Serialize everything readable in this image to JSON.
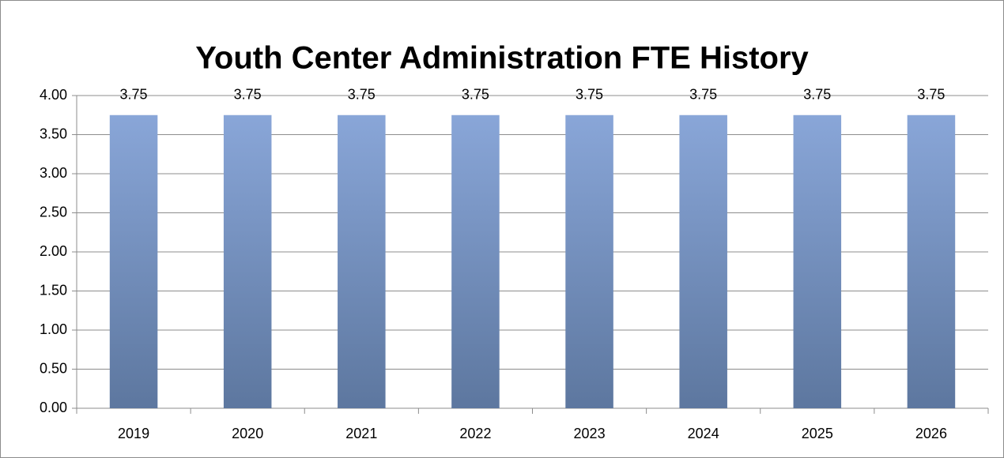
{
  "chart_data": {
    "type": "bar",
    "title": "Youth Center Administration FTE History",
    "categories": [
      "2019",
      "2020",
      "2021",
      "2022",
      "2023",
      "2024",
      "2025",
      "2026"
    ],
    "values": [
      3.75,
      3.75,
      3.75,
      3.75,
      3.75,
      3.75,
      3.75,
      3.75
    ],
    "color": "#7b96c4",
    "ylim": [
      0,
      4
    ],
    "yticks": [
      {
        "value": 0,
        "label": "0.00"
      },
      {
        "value": 0.5,
        "label": "0.50"
      },
      {
        "value": 1,
        "label": "1.00"
      },
      {
        "value": 1.5,
        "label": "1.50"
      },
      {
        "value": 2,
        "label": "2.00"
      },
      {
        "value": 2.5,
        "label": "2.50"
      },
      {
        "value": 3,
        "label": "3.00"
      },
      {
        "value": 3.5,
        "label": "3.50"
      },
      {
        "value": 4,
        "label": "4.00"
      }
    ],
    "grid": true
  }
}
